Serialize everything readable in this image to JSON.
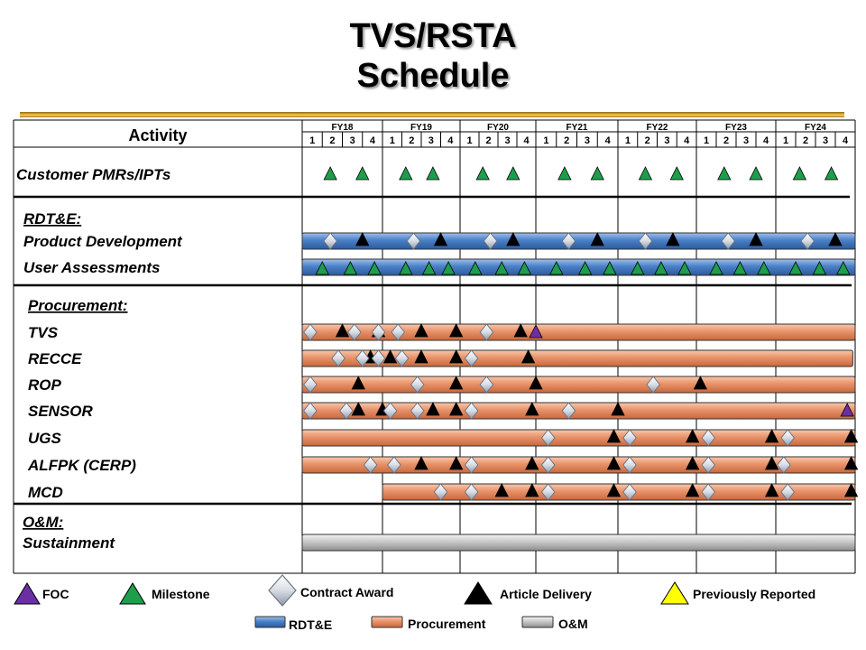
{
  "title": {
    "line1": "TVS/RSTA",
    "line2": "Schedule"
  },
  "colors": {
    "rdte": "#4a80c8",
    "procurement": "#e8926a",
    "om": "#c8c8c8",
    "milestone": "#1e9e4c",
    "foc": "#6b2fa3",
    "delivery": "#000000",
    "previously_reported": "#ffff00",
    "contract_award": "#d8dde4"
  },
  "chart_data": {
    "type": "gantt",
    "header_label": "Activity",
    "fiscal_years": [
      "FY18",
      "FY19",
      "FY20",
      "FY21",
      "FY22",
      "FY23",
      "FY24"
    ],
    "quarters": [
      "1",
      "2",
      "3",
      "4"
    ],
    "rows": [
      {
        "label": "Customer PMRs/IPTs",
        "style": "italic",
        "section": "pmr",
        "milestones": [
          18.35,
          18.75,
          19.3,
          19.65,
          20.3,
          20.7,
          21.35,
          21.75,
          22.35,
          22.75,
          23.35,
          23.75,
          24.3,
          24.7
        ]
      },
      {
        "label": "RDT&E:",
        "style": "header",
        "section": "rdte"
      },
      {
        "label": "Product Development",
        "style": "italic",
        "section": "rdte",
        "bar": {
          "type": "rdte",
          "start": 18.0,
          "end": 25.0
        },
        "awards": [
          18.35,
          19.4,
          20.4,
          21.4,
          22.35,
          23.4,
          24.4
        ],
        "deliveries": [
          18.75,
          19.75,
          20.7,
          21.75,
          22.7,
          23.75,
          24.75
        ]
      },
      {
        "label": "User Assessments",
        "style": "italic",
        "section": "rdte",
        "bar": {
          "type": "rdte",
          "start": 18.0,
          "end": 25.0
        },
        "milestones": [
          18.25,
          18.6,
          18.9,
          19.3,
          19.6,
          19.85,
          20.2,
          20.55,
          20.85,
          21.25,
          21.6,
          21.9,
          22.25,
          22.55,
          22.85,
          23.25,
          23.55,
          23.85,
          24.25,
          24.55,
          24.85
        ]
      },
      {
        "label": "Procurement:",
        "style": "header",
        "section": "proc"
      },
      {
        "label": "TVS",
        "style": "italic",
        "section": "proc",
        "bar": {
          "type": "procurement",
          "start": 18.0,
          "end": 25.0
        },
        "awards": [
          18.1,
          18.65,
          18.95,
          19.2,
          20.35
        ],
        "deliveries": [
          18.5,
          18.95,
          19.5,
          19.95,
          20.8
        ],
        "foc": [
          21.0
        ]
      },
      {
        "label": "RECCE",
        "style": "italic",
        "section": "proc",
        "bar": {
          "type": "procurement",
          "start": 18.0,
          "end": 24.97
        },
        "awards": [
          18.45,
          18.75,
          18.95,
          19.25,
          20.15
        ],
        "deliveries": [
          18.85,
          19.1,
          19.5,
          19.95,
          20.9
        ]
      },
      {
        "label": "ROP",
        "style": "italic",
        "section": "proc",
        "bar": {
          "type": "procurement",
          "start": 18.0,
          "end": 25.0
        },
        "awards": [
          18.1,
          19.45,
          20.35,
          22.45
        ],
        "deliveries": [
          18.7,
          19.95,
          21.0,
          23.05
        ]
      },
      {
        "label": "SENSOR",
        "style": "italic",
        "section": "proc",
        "bar": {
          "type": "procurement",
          "start": 18.0,
          "end": 25.0
        },
        "awards": [
          18.1,
          18.55,
          19.1,
          19.45,
          20.15,
          21.4
        ],
        "deliveries": [
          18.7,
          19.0,
          19.65,
          19.95,
          20.95,
          22.0
        ],
        "foc": [
          24.9
        ]
      },
      {
        "label": "UGS",
        "style": "italic",
        "section": "proc",
        "bar": {
          "type": "procurement",
          "start": 18.0,
          "end": 25.0
        },
        "awards": [
          21.15,
          22.15,
          23.15,
          24.15
        ],
        "deliveries": [
          21.95,
          22.95,
          23.95,
          24.95
        ]
      },
      {
        "label": "ALFPK (CERP)",
        "style": "italic",
        "section": "proc",
        "bar": {
          "type": "procurement",
          "start": 18.0,
          "end": 25.0
        },
        "awards": [
          18.85,
          19.15,
          20.15,
          21.15,
          22.15,
          23.15,
          24.1
        ],
        "deliveries": [
          19.5,
          19.95,
          20.95,
          21.95,
          22.95,
          23.95,
          24.95
        ]
      },
      {
        "label": "MCD",
        "style": "italic",
        "section": "proc",
        "bar": {
          "type": "procurement",
          "start": 19.0,
          "end": 25.0
        },
        "awards": [
          19.75,
          20.15,
          21.15,
          22.15,
          23.15,
          24.15
        ],
        "deliveries": [
          20.55,
          20.95,
          21.95,
          22.95,
          23.95,
          24.95
        ]
      },
      {
        "label": "O&M:",
        "style": "header",
        "section": "om"
      },
      {
        "label": "Sustainment",
        "style": "italic",
        "section": "om",
        "bar": {
          "type": "om",
          "start": 18.0,
          "end": 25.0
        }
      }
    ]
  },
  "legend": {
    "foc": "FOC",
    "milestone": "Milestone",
    "contract_award": "Contract Award",
    "article_delivery": "Article Delivery",
    "previously_reported": "Previously Reported",
    "rdte": "RDT&E",
    "procurement": "Procurement",
    "om": "O&M"
  }
}
